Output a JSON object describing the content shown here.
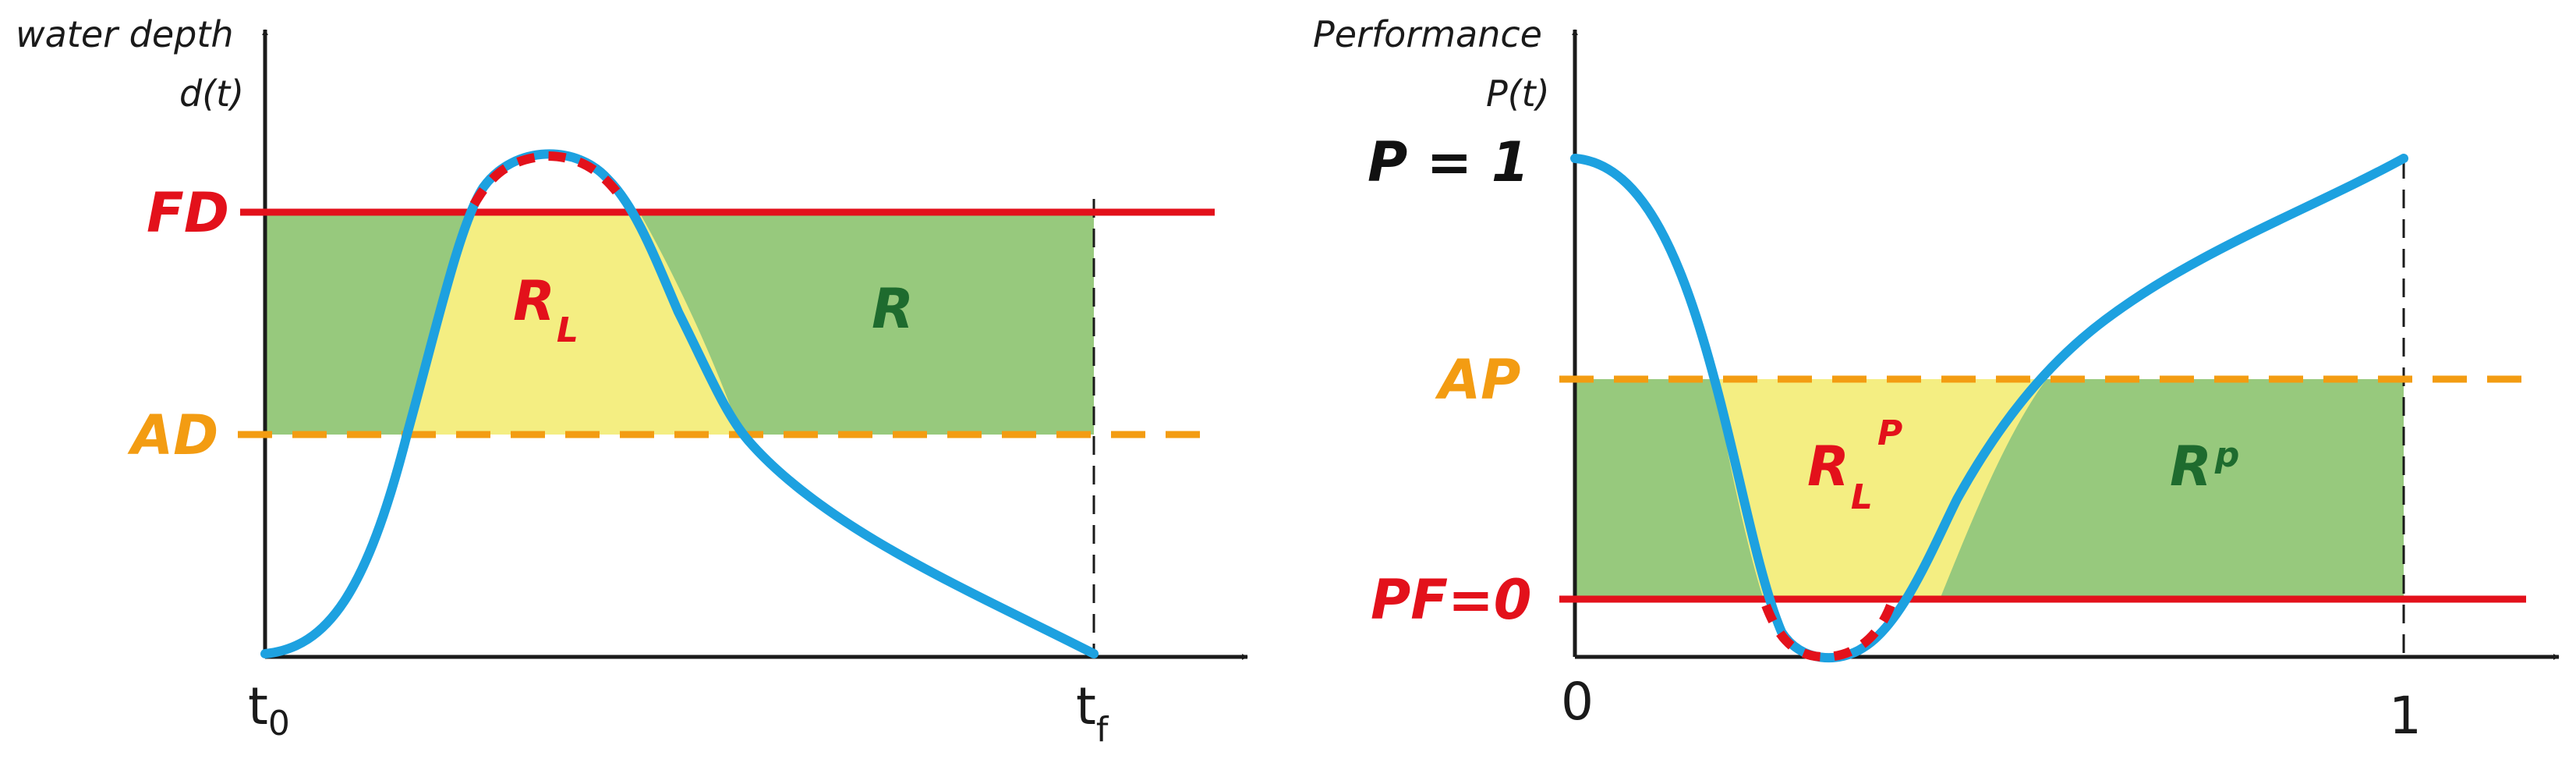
{
  "colors": {
    "red": "#e3111b",
    "orange": "#f39c12",
    "green": "#97c97d",
    "yellow": "#f4ee82",
    "blue": "#1da1e0",
    "darkgreen": "#1e6b2e",
    "axis": "#1a1a1a"
  },
  "left": {
    "ylabel_line1": "water depth",
    "ylabel_line2": "d(t)",
    "fd_label": "FD",
    "ad_label": "AD",
    "rl_main": "R",
    "rl_sub": "L",
    "r_label": "R",
    "t0_main": "t",
    "t0_sub": "0",
    "tf_main": "t",
    "tf_sub": "f"
  },
  "right": {
    "ylabel_line1": "Performance",
    "ylabel_line2": "P(t)",
    "p1_label": "P = 1",
    "ap_label": "AP",
    "pf_label": "PF=0",
    "rlp_main": "R",
    "rlp_sub": "L",
    "rlp_sup": "P",
    "rp_main": "R",
    "rp_sup": "p",
    "x0_label": "0",
    "x1_label": "1"
  }
}
